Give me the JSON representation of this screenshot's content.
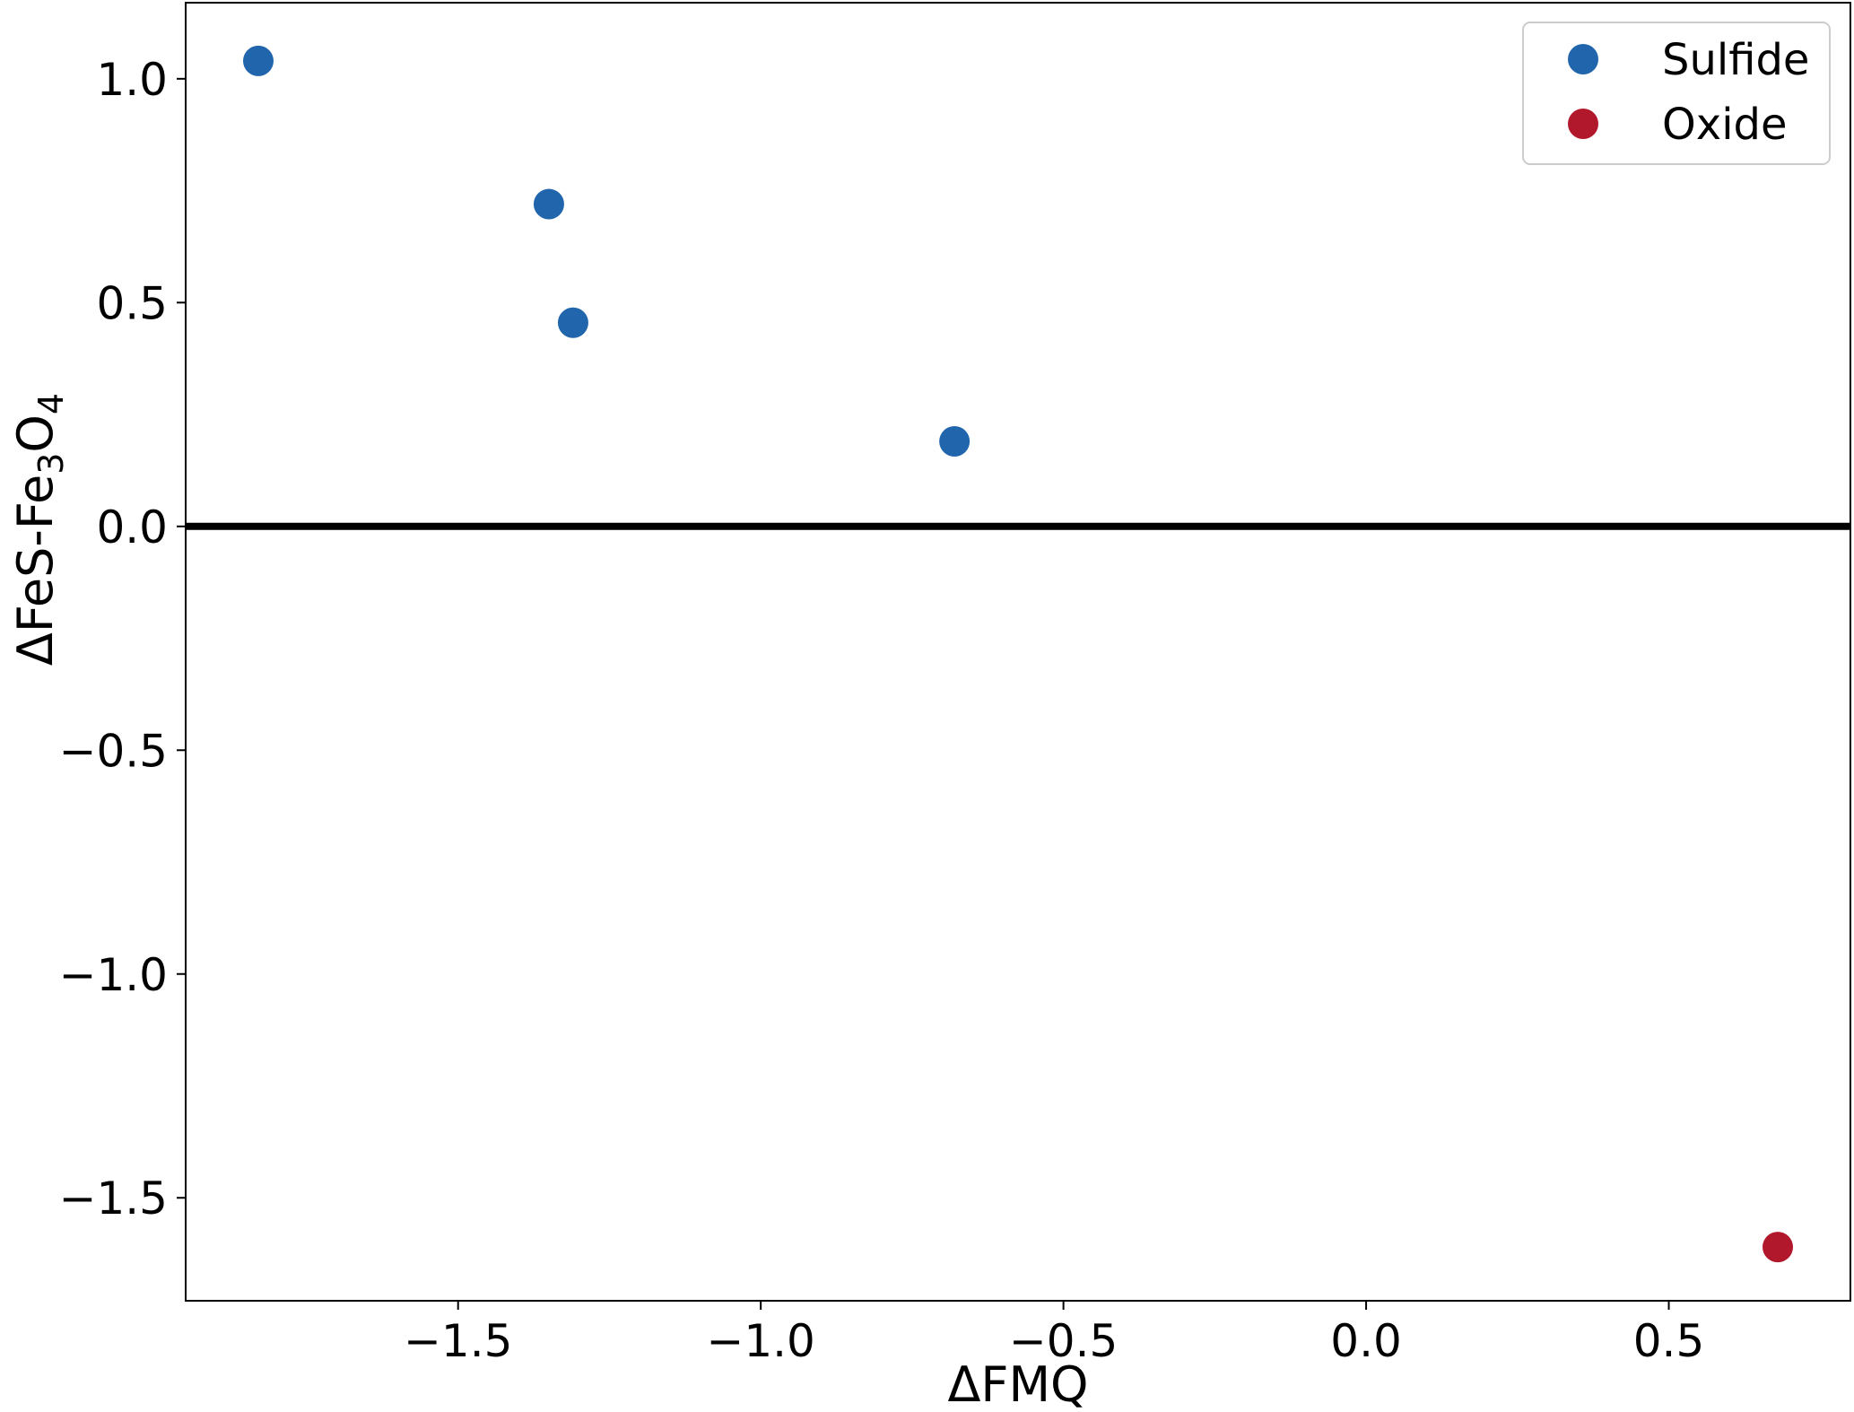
{
  "chart_data": {
    "type": "scatter",
    "title": "",
    "xlabel": "ΔFMQ",
    "ylabel": {
      "prefix": "ΔFeS-Fe",
      "sub1": "3",
      "mid": "O",
      "sub2": "4"
    },
    "xlim": [
      -1.95,
      0.8
    ],
    "ylim": [
      -1.73,
      1.17
    ],
    "xticks": [
      -1.5,
      -1.0,
      -0.5,
      0.0,
      0.5
    ],
    "xtick_labels": [
      "−1.5",
      "−1.0",
      "−0.5",
      "0.0",
      "0.5"
    ],
    "yticks": [
      1.0,
      0.5,
      0.0,
      -0.5,
      -1.0,
      -1.5
    ],
    "ytick_labels": [
      "1.0",
      "0.5",
      "0.0",
      "−0.5",
      "−1.0",
      "−1.5"
    ],
    "grid": false,
    "legend_position": "top-right",
    "reference_line": {
      "y": 0.0,
      "color": "#000000"
    },
    "series": [
      {
        "name": "Sulfide",
        "color": "#2166ac",
        "points": [
          {
            "x": -1.83,
            "y": 1.04
          },
          {
            "x": -1.35,
            "y": 0.72
          },
          {
            "x": -1.31,
            "y": 0.455
          },
          {
            "x": -0.68,
            "y": 0.19
          }
        ]
      },
      {
        "name": "Oxide",
        "color": "#b2182b",
        "points": [
          {
            "x": 0.68,
            "y": -1.61
          }
        ]
      }
    ]
  }
}
